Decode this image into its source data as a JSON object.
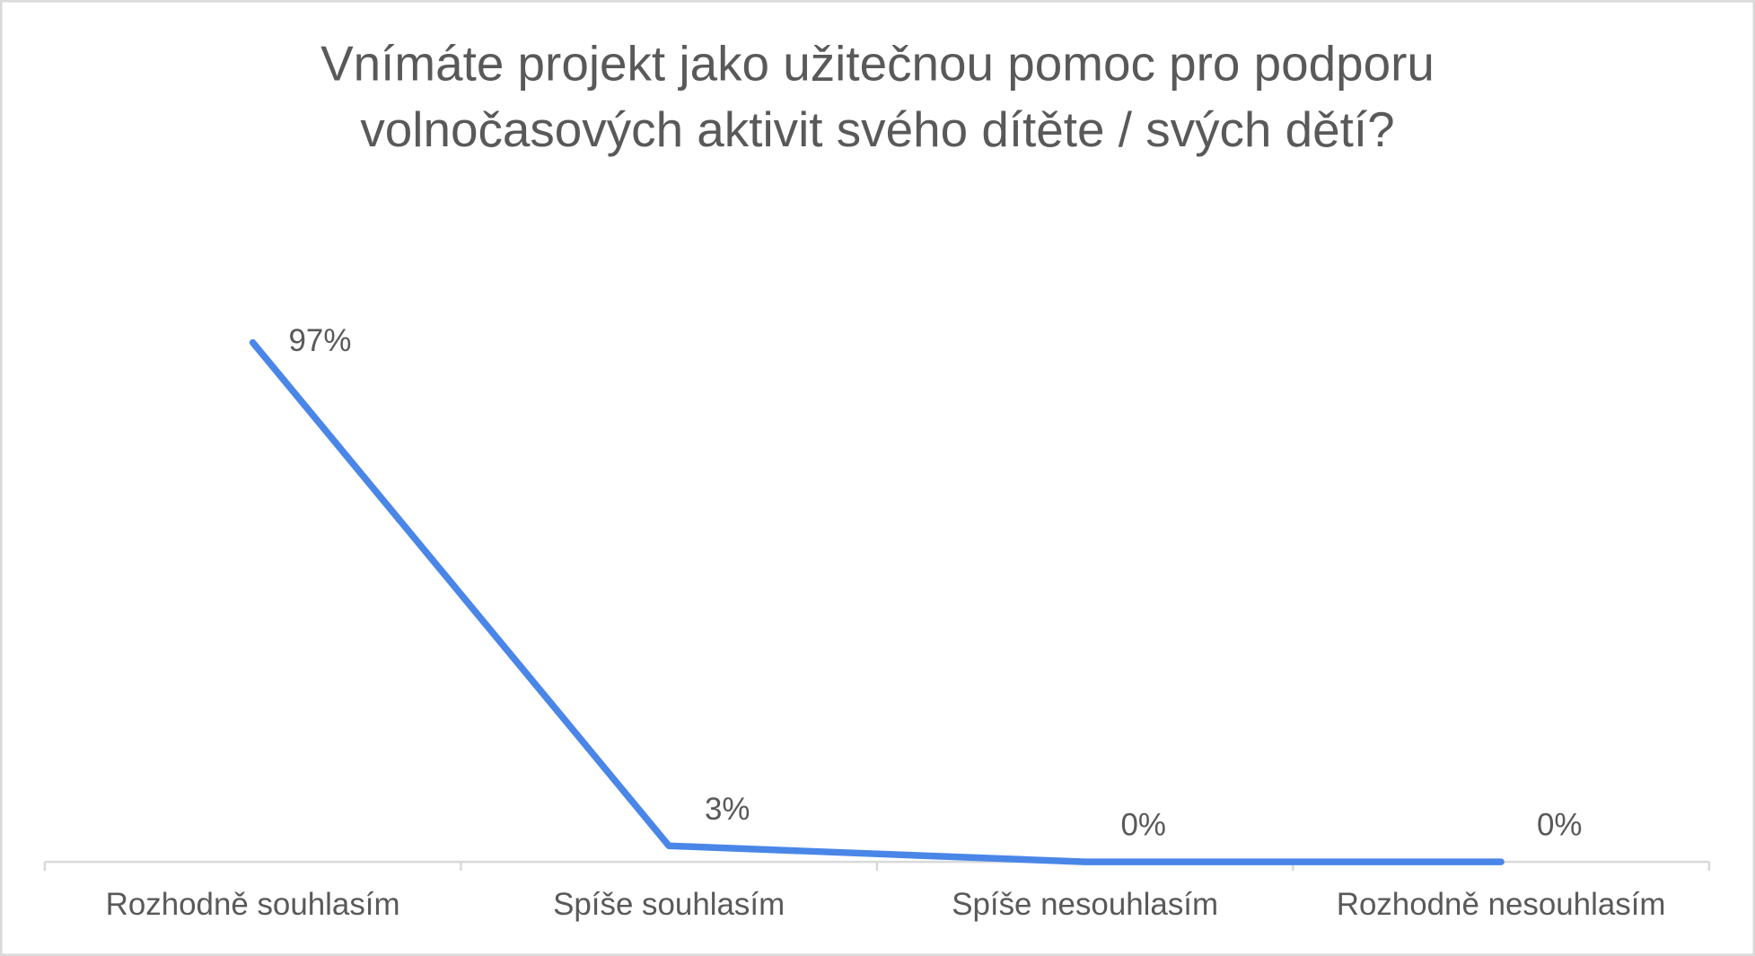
{
  "chart_data": {
    "type": "line",
    "title": [
      "Vnímáte projekt jako užitečnou pomoc pro podporu",
      "volnočasových aktivit svého dítěte / svých dětí?"
    ],
    "categories": [
      "Rozhodně souhlasím",
      "Spíše souhlasím",
      "Spíše nesouhlasím",
      "Rozhodně nesouhlasím"
    ],
    "values": [
      97,
      3,
      0,
      0
    ],
    "value_labels": [
      "97%",
      "3%",
      "0%",
      "0%"
    ],
    "color": "#4a86e8"
  }
}
